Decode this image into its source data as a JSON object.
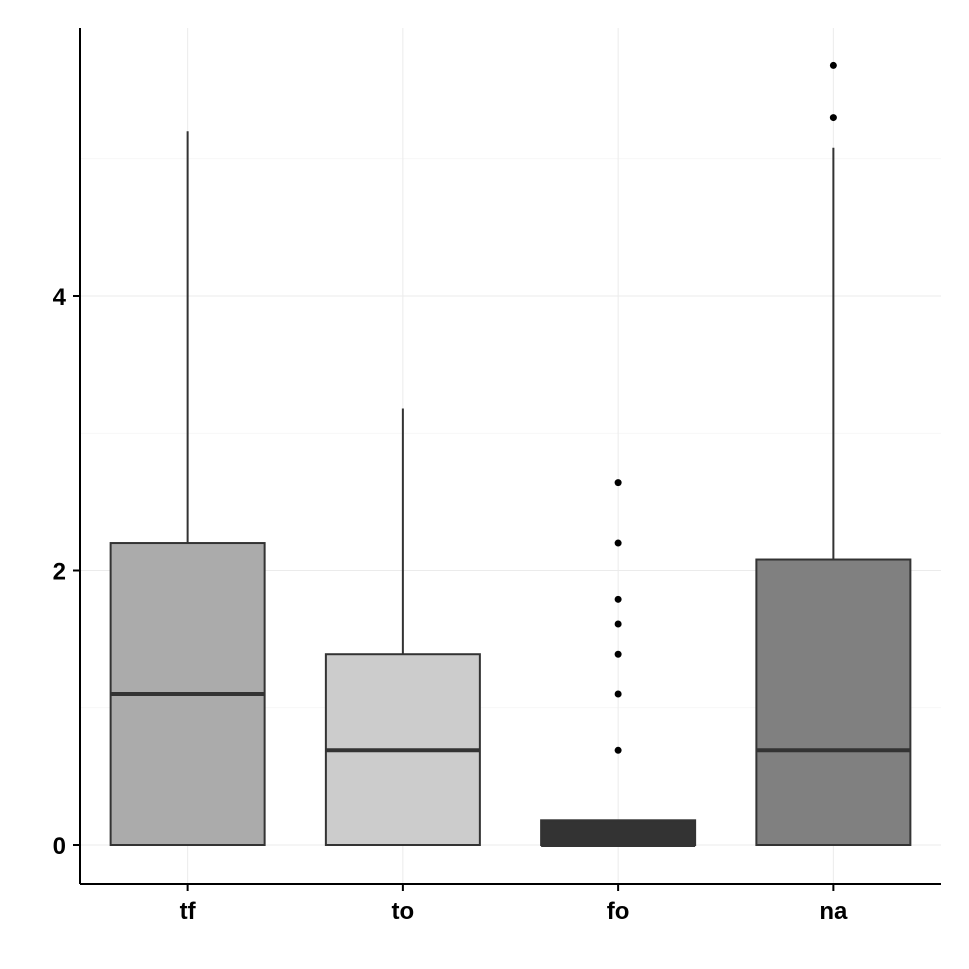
{
  "chart_data": {
    "type": "boxplot",
    "title": "",
    "xlabel": "",
    "ylabel": "",
    "ylim": [
      -0.28,
      5.9
    ],
    "y_ticks": [
      "0",
      "2",
      "4"
    ],
    "grid": true,
    "legend": "none",
    "categories": [
      "tf",
      "to",
      "fo",
      "na"
    ],
    "boxes": [
      {
        "label": "tf",
        "fill": "#ababab",
        "whisker_low": 0,
        "q1": 0,
        "median": 1.1,
        "q3": 2.2,
        "whisker_high": 5.2,
        "outliers": []
      },
      {
        "label": "to",
        "fill": "#cccccc",
        "whisker_low": 0,
        "q1": 0,
        "median": 0.69,
        "q3": 1.39,
        "whisker_high": 3.18,
        "outliers": []
      },
      {
        "label": "fo",
        "fill": "#333333",
        "whisker_low": 0,
        "q1": 0,
        "median": 0,
        "q3": 0.18,
        "whisker_high": 0.18,
        "outliers": [
          0.69,
          1.1,
          1.39,
          1.61,
          1.79,
          2.2,
          2.64
        ]
      },
      {
        "label": "na",
        "fill": "#808080",
        "whisker_low": 0,
        "q1": 0,
        "median": 0.69,
        "q3": 2.08,
        "whisker_high": 5.08,
        "outliers": [
          5.3,
          5.68
        ]
      }
    ]
  }
}
